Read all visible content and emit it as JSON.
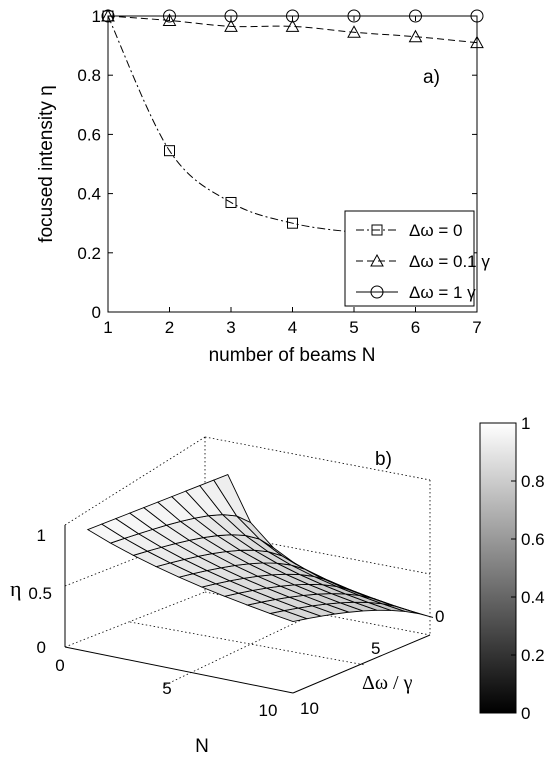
{
  "chart_data": [
    {
      "type": "line",
      "panel_label": "a)",
      "xlabel": "number of beams N",
      "ylabel": "focused intensity η",
      "xlim": [
        1,
        7
      ],
      "ylim": [
        0,
        1
      ],
      "xticks": [
        "1",
        "2",
        "3",
        "4",
        "5",
        "6",
        "7"
      ],
      "yticks": [
        "0",
        "0.2",
        "0.4",
        "0.6",
        "0.8",
        "1"
      ],
      "x": [
        1,
        2,
        3,
        4,
        5,
        6,
        7
      ],
      "legend_position": "bottom-right",
      "series": [
        {
          "name": "Δω = 0",
          "marker": "square",
          "linestyle": "dash-dot",
          "values": [
            1.0,
            0.545,
            0.37,
            0.3,
            0.27,
            0.26,
            0.255
          ]
        },
        {
          "name": "Δω = 0.1 γ",
          "marker": "triangle",
          "linestyle": "dashed",
          "values": [
            1.0,
            0.985,
            0.965,
            0.965,
            0.945,
            0.93,
            0.91
          ]
        },
        {
          "name": "Δω = 1 γ",
          "marker": "circle",
          "linestyle": "solid",
          "values": [
            1.0,
            1.0,
            1.0,
            1.0,
            1.0,
            1.0,
            1.0
          ]
        }
      ]
    },
    {
      "type": "surface",
      "panel_label": "b)",
      "xlabel": "N",
      "ylabel": "Δω / γ",
      "zlabel": "η",
      "xticks": [
        "0",
        "5",
        "10"
      ],
      "yticks": [
        "0",
        "5",
        "10"
      ],
      "zticks": [
        "0",
        "0.5",
        "1"
      ],
      "colorbar_ticks": [
        "0",
        "0.2",
        "0.4",
        "0.6",
        "0.8",
        "1"
      ],
      "colorbar_range": [
        0,
        1
      ]
    }
  ]
}
